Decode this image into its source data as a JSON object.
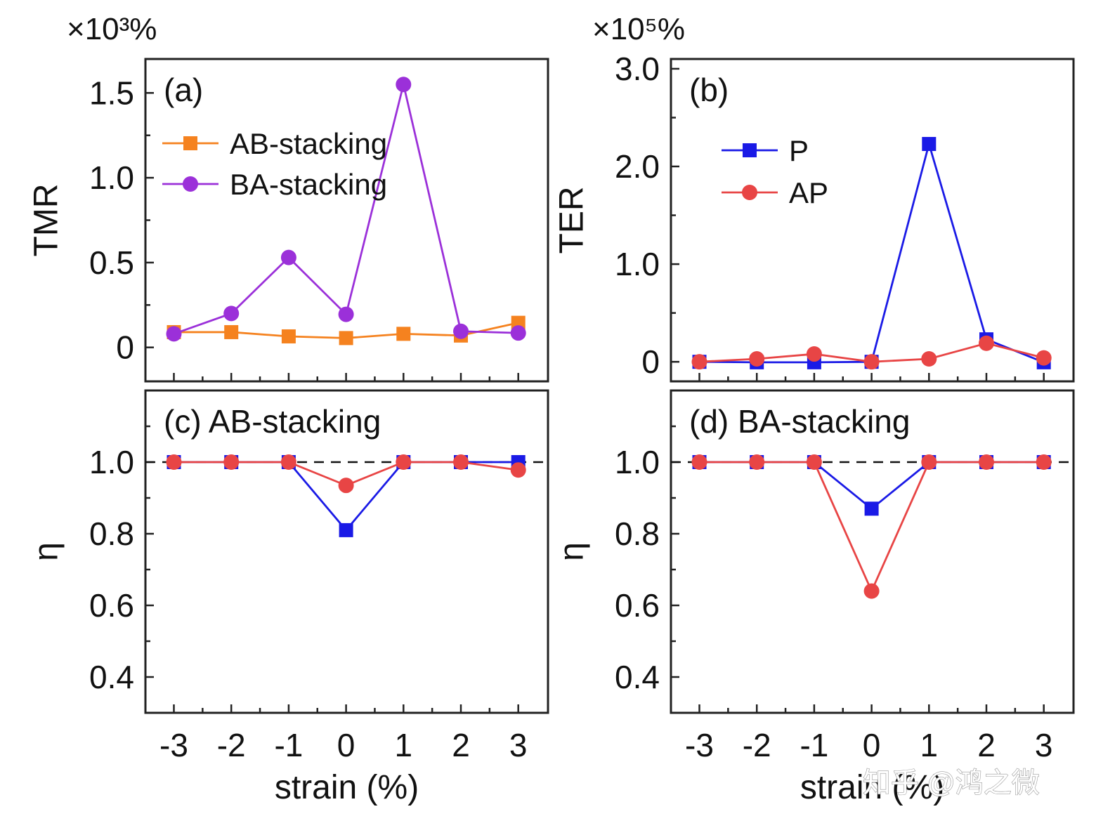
{
  "chart_data": [
    {
      "id": "a",
      "type": "line",
      "panel_label": "(a)",
      "scale_label": "×10³%",
      "ylabel": "TMR",
      "xlabel": "",
      "ylim": [
        -0.2,
        1.7
      ],
      "yticks": [
        0,
        0.5,
        1.0,
        1.5
      ],
      "ytick_labels": [
        "0",
        "0.5",
        "1.0",
        "1.5"
      ],
      "x": [
        -3,
        -2,
        -1,
        0,
        1,
        2,
        3
      ],
      "series": [
        {
          "name": "AB-stacking",
          "color": "#f5821f",
          "marker": "square",
          "values": [
            0.09,
            0.09,
            0.065,
            0.055,
            0.08,
            0.07,
            0.145
          ]
        },
        {
          "name": "BA-stacking",
          "color": "#9b30d9",
          "marker": "circle",
          "values": [
            0.08,
            0.2,
            0.53,
            0.195,
            1.55,
            0.095,
            0.085
          ]
        }
      ],
      "legend": "top-left"
    },
    {
      "id": "b",
      "type": "line",
      "panel_label": "(b)",
      "scale_label": "×10⁵%",
      "ylabel": "TER",
      "xlabel": "",
      "ylim": [
        -0.2,
        3.1
      ],
      "yticks": [
        0,
        1.0,
        2.0,
        3.0
      ],
      "ytick_labels": [
        "0",
        "1.0",
        "2.0",
        "3.0"
      ],
      "x": [
        -3,
        -2,
        -1,
        0,
        1,
        2,
        3
      ],
      "series": [
        {
          "name": "P",
          "color": "#1a1ae6",
          "marker": "square",
          "values": [
            0.0,
            -0.005,
            -0.005,
            0.0,
            2.23,
            0.23,
            -0.005
          ]
        },
        {
          "name": "AP",
          "color": "#e84545",
          "marker": "circle",
          "values": [
            0.0,
            0.03,
            0.08,
            0.0,
            0.03,
            0.19,
            0.04
          ]
        }
      ],
      "legend": "top-left"
    },
    {
      "id": "c",
      "type": "line",
      "panel_label": "(c) AB-stacking",
      "ylabel": "η",
      "xlabel": "strain (%)",
      "ylim": [
        0.3,
        1.2
      ],
      "yticks": [
        0.4,
        0.6,
        0.8,
        1.0
      ],
      "ytick_labels": [
        "0.4",
        "0.6",
        "0.8",
        "1.0"
      ],
      "xticks": [
        -3,
        -2,
        -1,
        0,
        1,
        2,
        3
      ],
      "xtick_labels": [
        "-3",
        "-2",
        "-1",
        "0",
        "1",
        "2",
        "3"
      ],
      "reference_line": 1.0,
      "x": [
        -3,
        -2,
        -1,
        0,
        1,
        2,
        3
      ],
      "series": [
        {
          "name": "P",
          "color": "#1a1ae6",
          "marker": "square",
          "values": [
            1.0,
            1.0,
            1.0,
            0.81,
            1.0,
            1.0,
            1.0
          ]
        },
        {
          "name": "AP",
          "color": "#e84545",
          "marker": "circle",
          "values": [
            1.0,
            1.0,
            1.0,
            0.935,
            1.0,
            1.0,
            0.978
          ]
        }
      ]
    },
    {
      "id": "d",
      "type": "line",
      "panel_label": "(d) BA-stacking",
      "ylabel": "η",
      "xlabel": "strain (%)",
      "ylim": [
        0.3,
        1.2
      ],
      "yticks": [
        0.4,
        0.6,
        0.8,
        1.0
      ],
      "ytick_labels": [
        "0.4",
        "0.6",
        "0.8",
        "1.0"
      ],
      "xticks": [
        -3,
        -2,
        -1,
        0,
        1,
        2,
        3
      ],
      "xtick_labels": [
        "-3",
        "-2",
        "-1",
        "0",
        "1",
        "2",
        "3"
      ],
      "reference_line": 1.0,
      "x": [
        -3,
        -2,
        -1,
        0,
        1,
        2,
        3
      ],
      "series": [
        {
          "name": "P",
          "color": "#1a1ae6",
          "marker": "square",
          "values": [
            1.0,
            1.0,
            1.0,
            0.87,
            1.0,
            1.0,
            1.0
          ]
        },
        {
          "name": "AP",
          "color": "#e84545",
          "marker": "circle",
          "values": [
            1.0,
            1.0,
            1.0,
            0.64,
            1.0,
            1.0,
            1.0
          ]
        }
      ]
    }
  ],
  "watermark": "知乎 @鸿之微"
}
